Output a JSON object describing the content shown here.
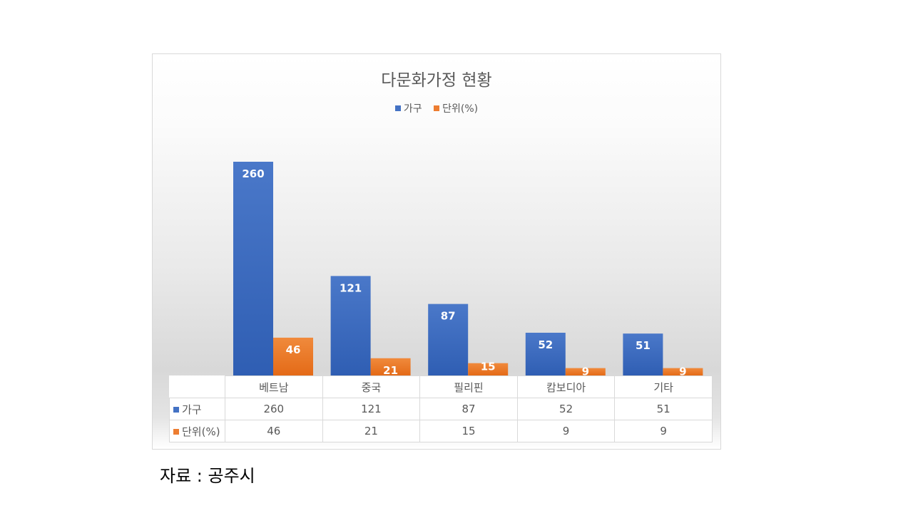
{
  "chart_data": {
    "type": "bar",
    "title": "다문화가정 현황",
    "categories": [
      "베트남",
      "중국",
      "필리핀",
      "캄보디아",
      "기타"
    ],
    "series": [
      {
        "name": "가구",
        "values": [
          260,
          121,
          87,
          52,
          51
        ],
        "color": "#4472c4"
      },
      {
        "name": "단위(%)",
        "values": [
          46,
          21,
          15,
          9,
          9
        ],
        "color": "#ed7d31"
      }
    ],
    "data_labels": true,
    "data_table": true,
    "legend": "top",
    "grid": false,
    "xlabel": "",
    "ylabel": "",
    "ylim": [
      0,
      260
    ]
  },
  "source_note": "자료 : 공주시"
}
